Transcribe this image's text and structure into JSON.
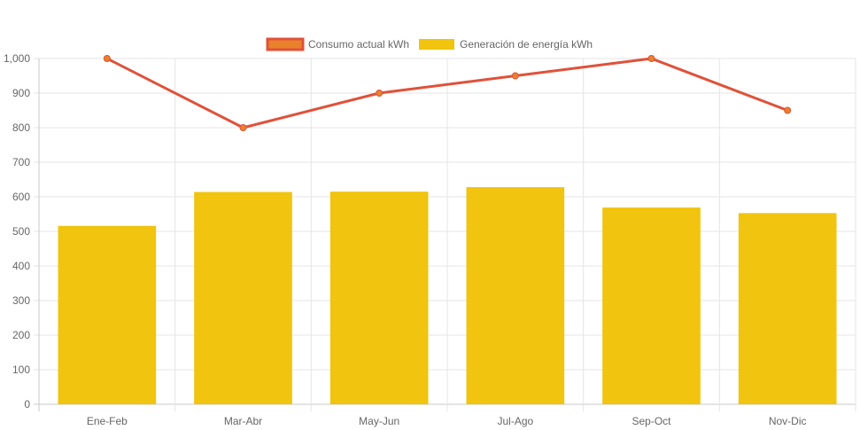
{
  "chart_data": {
    "type": "bar",
    "categories": [
      "Ene-Feb",
      "Mar-Abr",
      "May-Jun",
      "Jul-Ago",
      "Sep-Oct",
      "Nov-Dic"
    ],
    "series": [
      {
        "name": "Consumo actual kWh",
        "type": "line",
        "values": [
          1000,
          800,
          900,
          950,
          1000,
          850
        ],
        "color": "#e0513a",
        "point_color": "#e8822a"
      },
      {
        "name": "Generación de energía kWh",
        "type": "bar",
        "values": [
          516,
          614,
          615,
          628,
          569,
          553
        ],
        "color": "#f0c40f"
      }
    ],
    "y_ticks": [
      "0",
      "100",
      "200",
      "300",
      "400",
      "500",
      "600",
      "700",
      "800",
      "900",
      "1,000"
    ],
    "ylim": [
      0,
      1000
    ],
    "grid": true,
    "legend_position": "top-center",
    "title": "",
    "xlabel": "",
    "ylabel": ""
  },
  "colors": {
    "grid": "#e5e5e5",
    "axis": "#c8c8c8",
    "text": "#666666"
  }
}
